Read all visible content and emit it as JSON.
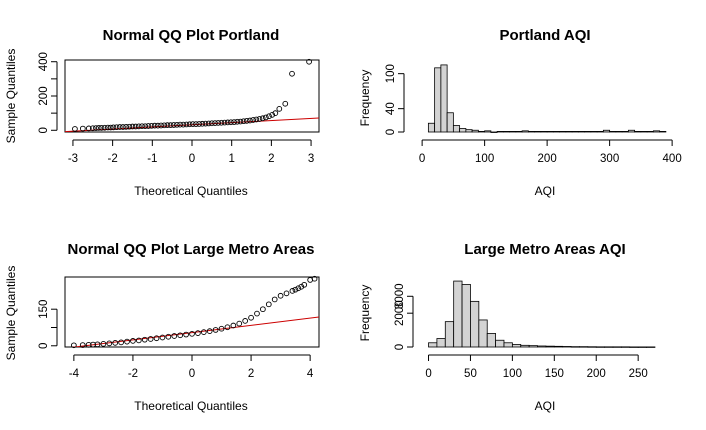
{
  "chart_data": [
    {
      "type": "scatter",
      "subtype": "qq-plot",
      "title": "Normal QQ Plot Portland",
      "xlabel": "Theoretical Quantiles",
      "ylabel": "Sample Quantiles",
      "xlim": [
        -3.2,
        3.2
      ],
      "ylim": [
        -10,
        410
      ],
      "xticks": [
        -3,
        -2,
        -1,
        0,
        1,
        2,
        3
      ],
      "yticks": [
        0,
        200,
        400
      ],
      "reference_line": {
        "color": "#cc0000",
        "points": [
          [
            -3.2,
            -8
          ],
          [
            3.2,
            72
          ]
        ]
      },
      "point_color": "#000000",
      "series": [
        {
          "x": [
            -2.95,
            -2.75,
            -2.6,
            -2.5,
            -2.42,
            -2.35,
            -2.28,
            -2.2,
            -2.12,
            -2.05,
            -1.98,
            -1.9,
            -1.82,
            -1.74,
            -1.66,
            -1.58,
            -1.5,
            -1.42,
            -1.34,
            -1.26,
            -1.18,
            -1.1,
            -1.02,
            -0.94,
            -0.86,
            -0.78,
            -0.7,
            -0.62,
            -0.54,
            -0.46,
            -0.38,
            -0.3,
            -0.22,
            -0.14,
            -0.06,
            0.02,
            0.1,
            0.18,
            0.26,
            0.34,
            0.42,
            0.5,
            0.58,
            0.66,
            0.74,
            0.82,
            0.9,
            0.98,
            1.06,
            1.14,
            1.22,
            1.3,
            1.38,
            1.46,
            1.54,
            1.62,
            1.7,
            1.78,
            1.86,
            1.94,
            2.02,
            2.1,
            2.2,
            2.35,
            2.52,
            2.95
          ],
          "y": [
            8,
            10,
            11,
            12,
            13,
            14,
            14,
            15,
            16,
            16,
            17,
            18,
            19,
            19,
            20,
            21,
            22,
            22,
            23,
            24,
            24,
            25,
            26,
            27,
            27,
            28,
            29,
            30,
            30,
            31,
            32,
            33,
            33,
            34,
            35,
            36,
            36,
            37,
            38,
            39,
            40,
            41,
            42,
            43,
            44,
            45,
            46,
            47,
            48,
            50,
            51,
            53,
            55,
            57,
            60,
            63,
            66,
            70,
            75,
            82,
            90,
            100,
            125,
            155,
            330,
            400
          ]
        }
      ]
    },
    {
      "type": "bar",
      "subtype": "histogram",
      "title": "Portland AQI",
      "xlabel": "AQI",
      "ylabel": "Frequency",
      "xlim": [
        -5,
        395
      ],
      "ylim": [
        0,
        120
      ],
      "xticks": [
        0,
        100,
        200,
        300,
        400
      ],
      "yticks": [
        0,
        40,
        100
      ],
      "bin_width": 10,
      "bin_start": 10,
      "bar_color": "#d3d3d3",
      "values": [
        15,
        110,
        115,
        33,
        11,
        6,
        4,
        3,
        1,
        2,
        0,
        1,
        1,
        1,
        1,
        2,
        1,
        1,
        1,
        1,
        1,
        1,
        1,
        1,
        1,
        1,
        1,
        1,
        3,
        1,
        1,
        1,
        3,
        1,
        1,
        1,
        2,
        1
      ]
    },
    {
      "type": "scatter",
      "subtype": "qq-plot",
      "title": "Normal QQ Plot Large Metro Areas",
      "xlabel": "Theoretical Quantiles",
      "ylabel": "Sample Quantiles",
      "xlim": [
        -4.3,
        4.3
      ],
      "ylim": [
        -5,
        282
      ],
      "xticks": [
        -4,
        -2,
        0,
        2,
        4
      ],
      "yticks": [
        0,
        150
      ],
      "reference_line": {
        "color": "#cc0000",
        "points": [
          [
            -4.3,
            -10
          ],
          [
            4.3,
            118
          ]
        ]
      },
      "point_color": "#000000",
      "series": [
        {
          "x": [
            -4.0,
            -3.7,
            -3.5,
            -3.35,
            -3.2,
            -3.0,
            -2.8,
            -2.6,
            -2.4,
            -2.2,
            -2.0,
            -1.8,
            -1.6,
            -1.4,
            -1.2,
            -1.0,
            -0.8,
            -0.6,
            -0.4,
            -0.2,
            0.0,
            0.2,
            0.4,
            0.6,
            0.8,
            1.0,
            1.2,
            1.4,
            1.6,
            1.8,
            2.0,
            2.2,
            2.4,
            2.6,
            2.8,
            3.0,
            3.2,
            3.4,
            3.5,
            3.6,
            3.7,
            3.8,
            4.0,
            4.15
          ],
          "y": [
            2,
            3,
            4,
            5,
            6,
            8,
            10,
            12,
            14,
            17,
            20,
            22,
            25,
            28,
            31,
            34,
            37,
            40,
            43,
            46,
            49,
            52,
            56,
            60,
            65,
            70,
            76,
            83,
            91,
            102,
            115,
            132,
            150,
            170,
            190,
            205,
            215,
            225,
            230,
            236,
            242,
            250,
            270,
            275
          ]
        }
      ]
    },
    {
      "type": "bar",
      "subtype": "histogram",
      "title": "Large Metro Areas AQI",
      "xlabel": "AQI",
      "ylabel": "Frequency",
      "xlim": [
        -3,
        282
      ],
      "ylim": [
        0,
        4200
      ],
      "xticks": [
        0,
        50,
        100,
        150,
        200,
        250
      ],
      "yticks": [
        0,
        2000,
        3000
      ],
      "bin_width": 10,
      "bin_start": 0,
      "bar_color": "#d3d3d3",
      "values": [
        250,
        500,
        1500,
        3900,
        3700,
        2700,
        1600,
        800,
        400,
        250,
        150,
        100,
        80,
        60,
        50,
        40,
        30,
        20,
        20,
        15,
        10,
        10,
        10,
        10,
        5,
        5,
        5
      ]
    }
  ]
}
